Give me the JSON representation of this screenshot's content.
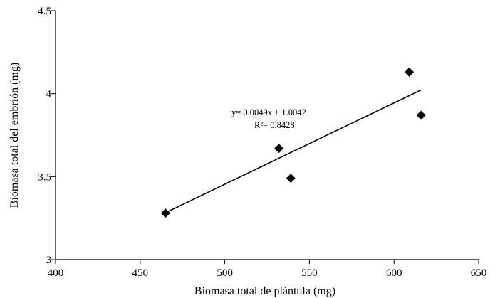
{
  "chart_data": {
    "type": "scatter",
    "xlabel": "Biomasa total de plántula (mg)",
    "ylabel": "Biomasa total del embrión (mg)",
    "xlim": [
      400,
      650
    ],
    "ylim": [
      3,
      4.5
    ],
    "x_ticks": [
      "400",
      "450",
      "500",
      "550",
      "600",
      "650"
    ],
    "y_ticks": [
      "3",
      "3.5",
      "4",
      "4.5"
    ],
    "points": [
      {
        "x": 465,
        "y": 3.28
      },
      {
        "x": 532,
        "y": 3.67
      },
      {
        "x": 539,
        "y": 3.49
      },
      {
        "x": 609,
        "y": 4.13
      },
      {
        "x": 616,
        "y": 3.87
      }
    ],
    "trendline": {
      "slope": 0.0049,
      "intercept": 1.0042,
      "x_range": [
        465,
        616
      ]
    },
    "annotations": {
      "equation": "y= 0.0049x + 1.0042",
      "r_squared": "R²= 0.8428"
    },
    "marker": "diamond",
    "grid": false,
    "legend": "none",
    "colors": {
      "marker": "#000000",
      "line": "#000000"
    }
  }
}
